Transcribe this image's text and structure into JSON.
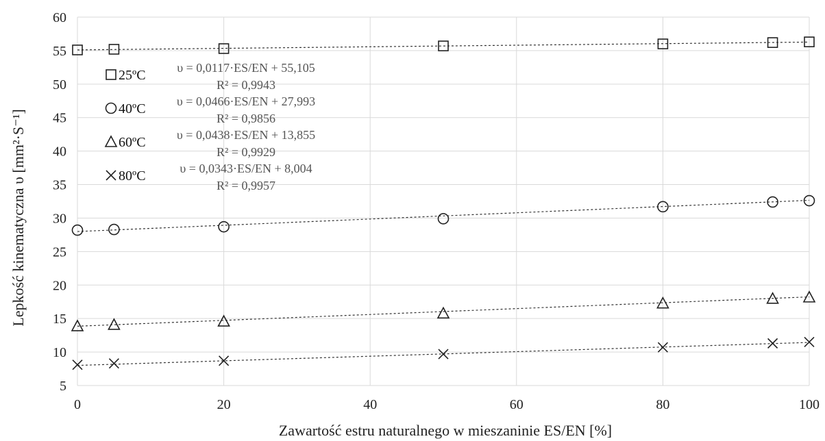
{
  "chart_data": {
    "type": "scatter",
    "title": "",
    "xlabel": "Zawartość estru naturalnego w mieszaninie ES/EN [%]",
    "ylabel": "Lepkość kinematyczna υ [mm²·S⁻¹]",
    "xlim": [
      0,
      100
    ],
    "ylim": [
      5,
      60
    ],
    "x_ticks": [
      "0",
      "20",
      "40",
      "60",
      "80",
      "100"
    ],
    "y_ticks": [
      "5",
      "10",
      "15",
      "20",
      "25",
      "30",
      "35",
      "40",
      "45",
      "50",
      "55",
      "60"
    ],
    "grid": true,
    "legend_position": "top-left",
    "x": [
      0,
      5,
      20,
      50,
      80,
      95,
      100
    ],
    "series": [
      {
        "name": "25ºC",
        "marker": "square",
        "values": [
          55.1,
          55.2,
          55.3,
          55.7,
          56.0,
          56.2,
          56.3
        ],
        "equation": "υ = 0,0117·ES/EN + 55,105",
        "r2": "R² = 0,9943",
        "slope": 0.0117,
        "intercept": 55.105
      },
      {
        "name": "40ºC",
        "marker": "circle",
        "values": [
          28.2,
          28.3,
          28.7,
          29.9,
          31.7,
          32.4,
          32.6
        ],
        "equation": "υ = 0,0466·ES/EN + 27,993",
        "r2": "R² = 0,9856",
        "slope": 0.0466,
        "intercept": 27.993
      },
      {
        "name": "60ºC",
        "marker": "triangle",
        "values": [
          13.9,
          14.1,
          14.6,
          15.8,
          17.3,
          18.0,
          18.2
        ],
        "equation": "υ = 0,0438·ES/EN + 13,855",
        "r2": "R² = 0,9929",
        "slope": 0.0438,
        "intercept": 13.855
      },
      {
        "name": "80ºC",
        "marker": "x",
        "values": [
          8.1,
          8.3,
          8.7,
          9.7,
          10.7,
          11.3,
          11.5
        ],
        "equation": "υ = 0,0343·ES/EN + 8,004",
        "r2": "R² = 0,9957",
        "slope": 0.0343,
        "intercept": 8.004
      }
    ]
  }
}
